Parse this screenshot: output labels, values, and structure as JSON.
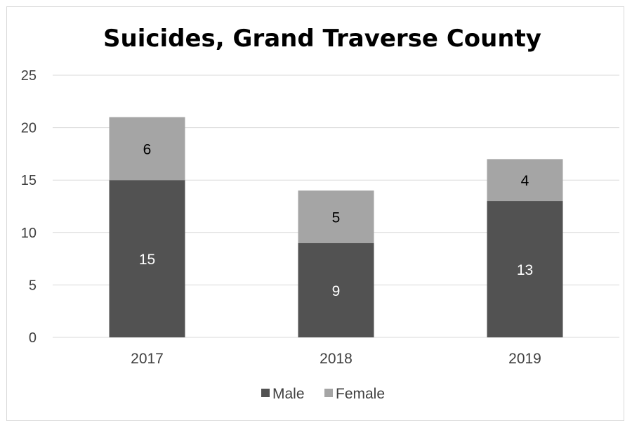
{
  "chart_data": {
    "type": "bar",
    "stacked": true,
    "title": "Suicides, Grand Traverse County",
    "categories": [
      "2017",
      "2018",
      "2019"
    ],
    "series": [
      {
        "name": "Male",
        "values": [
          15,
          9,
          13
        ],
        "color": "#525252",
        "label_color": "#ffffff"
      },
      {
        "name": "Female",
        "values": [
          6,
          5,
          4
        ],
        "color": "#a5a5a5",
        "label_color": "#000000"
      }
    ],
    "ylim": [
      0,
      25
    ],
    "yticks": [
      "0",
      "5",
      "10",
      "15",
      "20",
      "25"
    ],
    "grid": true,
    "legend_position": "bottom"
  }
}
